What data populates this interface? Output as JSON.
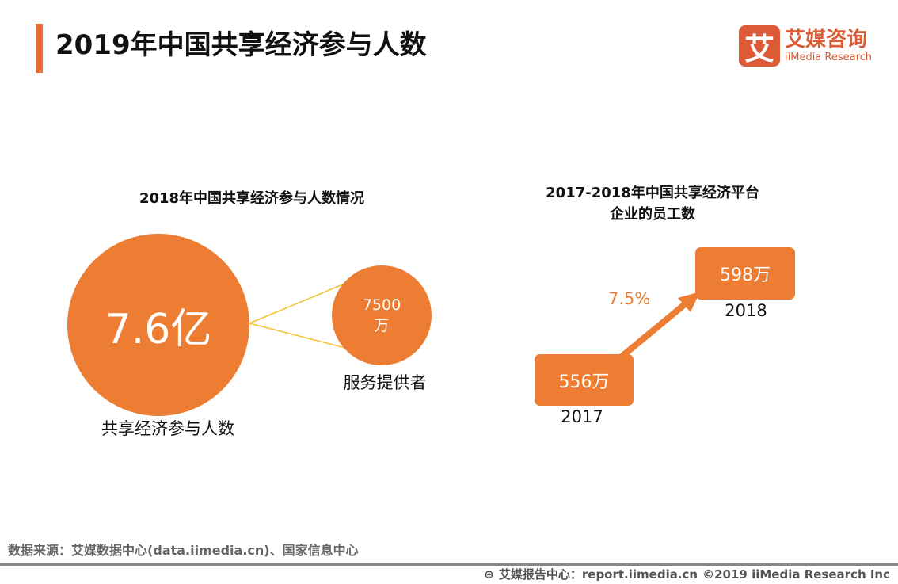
{
  "header": {
    "title": "2019年中国共享经济参与人数",
    "accent_color": "#ec6d2f"
  },
  "logo": {
    "mark": "艾",
    "cn": "艾媒咨询",
    "en": "iiMedia Research",
    "color": "#dc5a36"
  },
  "left_panel": {
    "subtitle": "2018年中国共享经济参与人数情况",
    "big_circle": {
      "value": "7.6亿",
      "label": "共享经济参与人数"
    },
    "small_circle": {
      "value_line1": "7500",
      "value_line2": "万",
      "label": "服务提供者"
    },
    "color": "#ec7d33"
  },
  "right_panel": {
    "title_line1": "2017-2018年中国共享经济平台",
    "title_line2": "企业的员工数",
    "items": [
      {
        "year": "2017",
        "value": "556万"
      },
      {
        "year": "2018",
        "value": "598万"
      }
    ],
    "growth": "7.5%"
  },
  "footer": {
    "source": "数据来源：艾媒数据中心(data.iimedia.cn)、国家信息中心",
    "report_center": "艾媒报告中心：report.iimedia.cn",
    "copyright": "©2019  iiMedia Research  Inc"
  }
}
